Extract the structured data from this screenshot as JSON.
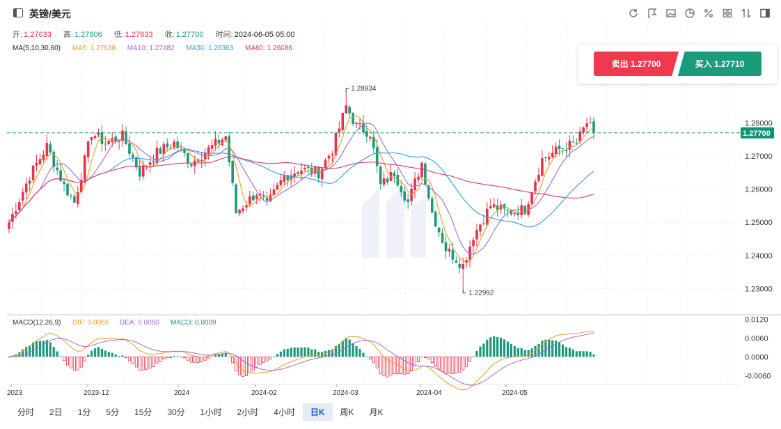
{
  "header": {
    "title": "英镑/美元"
  },
  "toolbar": {
    "icons": [
      "refresh-icon",
      "draw-icon",
      "image-icon",
      "pie-chart-icon",
      "percent-icon",
      "grid-icon",
      "sort-icon",
      "panel-icon"
    ]
  },
  "ohlc": {
    "open_label": "开:",
    "open": "1.27633",
    "high_label": "高:",
    "high": "1.27806",
    "low_label": "低:",
    "low": "1.27633",
    "close_label": "收:",
    "close": "1.27700",
    "time_label": "时间:",
    "time": "2024-06-05 05:00"
  },
  "ma": {
    "label": "MA(5,10,30,60)",
    "ma5": "MA5: 1.27638",
    "ma10": "MA10: 1.27482",
    "ma30": "MA30: 1.26363",
    "ma60": "MA60: 1.26086"
  },
  "trade": {
    "sell": "卖出 1.27700",
    "buy": "买入 1.27710"
  },
  "macd": {
    "label": "MACD(12,26,9)",
    "dif": "DIF: 0.0055",
    "dea": "DEA: 0.0050",
    "macd": "MACD: 0.0009"
  },
  "colors": {
    "up": "#e8314a",
    "down": "#1a9a7a",
    "ma5": "#f09a1e",
    "ma10": "#a56ad0",
    "ma30": "#2e9be0",
    "ma60": "#d93a6e"
  },
  "chart_data": {
    "type": "candlestick",
    "y_ticks": [
      "1.28000",
      "1.27000",
      "1.26000",
      "1.25000",
      "1.24000",
      "1.23000"
    ],
    "y_tick_partial": "0",
    "y_range": [
      1.2225,
      1.2965
    ],
    "current_price": "1.27700",
    "current_value": 1.277,
    "max_label": "1.28934",
    "max_value": 1.28934,
    "min_label": "1.22992",
    "min_value": 1.22992,
    "x_ticks": [
      "2023",
      "2023-12",
      "2024",
      "2024-02",
      "2024-03",
      "2024-04",
      "2024-05"
    ],
    "macd_ticks": [
      "0.0120",
      "0.0060",
      "0.0000",
      "-0.0060"
    ],
    "macd_range": [
      -0.0088,
      0.0128
    ],
    "key_points": [
      {
        "i": 0,
        "c": 1.25
      },
      {
        "i": 6,
        "c": 1.264
      },
      {
        "i": 11,
        "c": 1.273
      },
      {
        "i": 16,
        "c": 1.261
      },
      {
        "i": 19,
        "c": 1.256
      },
      {
        "i": 24,
        "c": 1.277
      },
      {
        "i": 28,
        "c": 1.274
      },
      {
        "i": 33,
        "c": 1.276
      },
      {
        "i": 38,
        "c": 1.265
      },
      {
        "i": 43,
        "c": 1.271
      },
      {
        "i": 48,
        "c": 1.274
      },
      {
        "i": 53,
        "c": 1.268
      },
      {
        "i": 58,
        "c": 1.272
      },
      {
        "i": 63,
        "c": 1.276
      },
      {
        "i": 66,
        "c": 1.253
      },
      {
        "i": 72,
        "c": 1.259
      },
      {
        "i": 75,
        "c": 1.255
      },
      {
        "i": 80,
        "c": 1.264
      },
      {
        "i": 85,
        "c": 1.266
      },
      {
        "i": 90,
        "c": 1.265
      },
      {
        "i": 94,
        "c": 1.272
      },
      {
        "i": 98,
        "c": 1.285
      },
      {
        "i": 101,
        "c": 1.279
      },
      {
        "i": 105,
        "c": 1.277
      },
      {
        "i": 108,
        "c": 1.261
      },
      {
        "i": 112,
        "c": 1.265
      },
      {
        "i": 116,
        "c": 1.256
      },
      {
        "i": 120,
        "c": 1.268
      },
      {
        "i": 123,
        "c": 1.253
      },
      {
        "i": 127,
        "c": 1.242
      },
      {
        "i": 132,
        "c": 1.237
      },
      {
        "i": 135,
        "c": 1.246
      },
      {
        "i": 140,
        "c": 1.255
      },
      {
        "i": 145,
        "c": 1.253
      },
      {
        "i": 150,
        "c": 1.254
      },
      {
        "i": 155,
        "c": 1.269
      },
      {
        "i": 160,
        "c": 1.272
      },
      {
        "i": 165,
        "c": 1.274
      },
      {
        "i": 168,
        "c": 1.28
      },
      {
        "i": 170,
        "c": 1.277
      }
    ]
  },
  "periods": [
    "分时",
    "2日",
    "1分",
    "5分",
    "15分",
    "30分",
    "1小时",
    "2小时",
    "4小时",
    "日K",
    "周K",
    "月K"
  ],
  "active_period": "日K"
}
